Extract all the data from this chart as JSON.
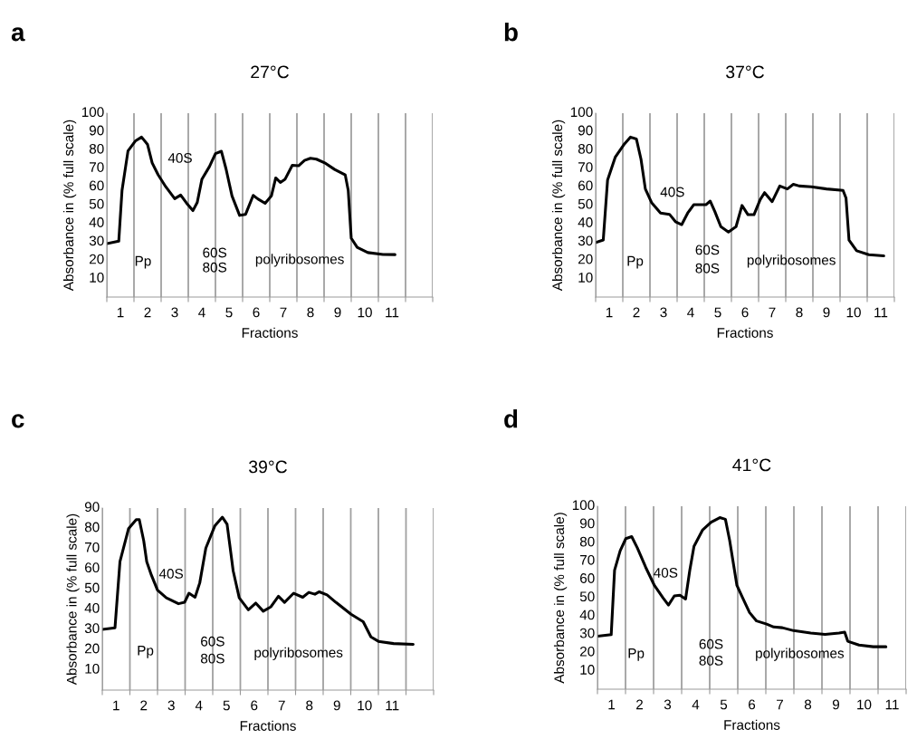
{
  "chart_data": [
    {
      "type": "line",
      "title": "27°C",
      "xlabel": "Fractions",
      "ylabel": "Absorbance in (% full scale)",
      "xlim": [
        0,
        12
      ],
      "ylim": [
        0,
        100
      ],
      "yticks": [
        10,
        20,
        30,
        40,
        50,
        60,
        70,
        80,
        90,
        100
      ],
      "grid": "x",
      "legend": false,
      "marker": "none",
      "line_style": "solid",
      "xticks": [
        {
          "value": 0,
          "label": null
        },
        {
          "value": 1,
          "label": null
        },
        {
          "value": 2,
          "label": null
        },
        {
          "value": 3,
          "label": null
        },
        {
          "value": 4,
          "label": null
        },
        {
          "value": 5,
          "label": null
        },
        {
          "value": 6,
          "label": null
        },
        {
          "value": 7,
          "label": null
        },
        {
          "value": 8,
          "label": null
        },
        {
          "value": 9,
          "label": null
        },
        {
          "value": 10,
          "label": null
        },
        {
          "value": 11,
          "label": null
        },
        {
          "value": 12,
          "label": null
        },
        {
          "value": 0.5,
          "label": "1"
        },
        {
          "value": 1.5,
          "label": "2"
        },
        {
          "value": 2.5,
          "label": "3"
        },
        {
          "value": 3.5,
          "label": "4"
        },
        {
          "value": 4.5,
          "label": "5"
        },
        {
          "value": 5.5,
          "label": "6"
        },
        {
          "value": 6.5,
          "label": "7"
        },
        {
          "value": 7.5,
          "label": "8"
        },
        {
          "value": 8.5,
          "label": "9"
        },
        {
          "value": 9.5,
          "label": "10"
        },
        {
          "value": 10.5,
          "label": "11"
        }
      ],
      "annotations": [
        "a",
        "Pp",
        "40S",
        "60S",
        "80S",
        "polyribosomes"
      ],
      "series": [
        {
          "color": "#000000",
          "x": [
            0,
            0.44,
            0.56,
            0.78,
            1.06,
            1.28,
            1.5,
            1.67,
            1.89,
            2.17,
            2.5,
            2.72,
            2.94,
            3.17,
            3.33,
            3.5,
            3.78,
            4.0,
            4.22,
            4.39,
            4.61,
            4.89,
            5.11,
            5.39,
            5.56,
            5.83,
            6.06,
            6.22,
            6.39,
            6.56,
            6.83,
            7.06,
            7.28,
            7.5,
            7.72,
            8.06,
            8.39,
            8.78,
            8.89,
            9.0,
            9.22,
            9.61,
            10.17,
            10.61
          ],
          "values": [
            29,
            30.4,
            58,
            79.5,
            85,
            87,
            83,
            73,
            66.5,
            60,
            53.5,
            55.5,
            51,
            47,
            51.5,
            64,
            71,
            78,
            79.3,
            69.7,
            55,
            44.4,
            45,
            55.3,
            53.4,
            51,
            55,
            64.8,
            62.3,
            64,
            71.7,
            71.4,
            74.3,
            75.5,
            75,
            72.7,
            69.4,
            66.4,
            58,
            32,
            27,
            24.2,
            23.2,
            23.1
          ]
        }
      ]
    },
    {
      "type": "line",
      "title": "37°C",
      "xlabel": "Fractions",
      "ylabel": "Absorbance in (% full scale)",
      "xlim": [
        0,
        11
      ],
      "ylim": [
        0,
        100
      ],
      "yticks": [
        10,
        20,
        30,
        40,
        50,
        60,
        70,
        80,
        90,
        100
      ],
      "grid": "x",
      "legend": false,
      "marker": "none",
      "line_style": "solid",
      "xticks": [
        {
          "value": 0,
          "label": null
        },
        {
          "value": 1,
          "label": null
        },
        {
          "value": 2,
          "label": null
        },
        {
          "value": 3,
          "label": null
        },
        {
          "value": 4,
          "label": null
        },
        {
          "value": 5,
          "label": null
        },
        {
          "value": 6,
          "label": null
        },
        {
          "value": 7,
          "label": null
        },
        {
          "value": 8,
          "label": null
        },
        {
          "value": 9,
          "label": null
        },
        {
          "value": 10,
          "label": null
        },
        {
          "value": 11,
          "label": null
        },
        {
          "value": 0.5,
          "label": "1"
        },
        {
          "value": 1.5,
          "label": "2"
        },
        {
          "value": 2.5,
          "label": "3"
        },
        {
          "value": 3.5,
          "label": "4"
        },
        {
          "value": 4.5,
          "label": "5"
        },
        {
          "value": 5.5,
          "label": "6"
        },
        {
          "value": 6.5,
          "label": "7"
        },
        {
          "value": 7.5,
          "label": "8"
        },
        {
          "value": 8.5,
          "label": "9"
        },
        {
          "value": 9.5,
          "label": "10"
        },
        {
          "value": 10.5,
          "label": "11"
        }
      ],
      "annotations": [
        "b",
        "Pp",
        "40S",
        "60S",
        "80S",
        "polyribosomes"
      ],
      "series": [
        {
          "color": "#000000",
          "x": [
            0,
            0.28,
            0.44,
            0.72,
            1.06,
            1.28,
            1.5,
            1.67,
            1.83,
            2.06,
            2.39,
            2.72,
            2.94,
            3.17,
            3.39,
            3.61,
            4.06,
            4.22,
            4.39,
            4.61,
            4.89,
            5.17,
            5.39,
            5.61,
            5.83,
            6.06,
            6.22,
            6.5,
            6.78,
            7.06,
            7.28,
            7.5,
            7.94,
            8.5,
            9.11,
            9.22,
            9.33,
            9.61,
            10.06,
            10.61
          ],
          "values": [
            29.6,
            31,
            63.7,
            76,
            83.3,
            87,
            86,
            75,
            58.8,
            51.4,
            45.7,
            45,
            41,
            39.4,
            45.7,
            50.2,
            50.2,
            52.2,
            46.5,
            38.3,
            35.4,
            38.3,
            49.8,
            44.8,
            44.8,
            53,
            56.8,
            51.9,
            60.4,
            58.8,
            61.3,
            60.4,
            60,
            58.8,
            58,
            53.8,
            31,
            25.2,
            23,
            22.4
          ]
        }
      ]
    },
    {
      "type": "line",
      "title": "39°C",
      "xlabel": "Fractions",
      "ylabel": "Absorbance in (% full scale)",
      "xlim": [
        0,
        12
      ],
      "ylim": [
        0,
        90
      ],
      "yticks": [
        10,
        20,
        30,
        40,
        50,
        60,
        70,
        80,
        90
      ],
      "grid": "x",
      "legend": false,
      "marker": "none",
      "line_style": "solid",
      "xticks": [
        {
          "value": 0,
          "label": null
        },
        {
          "value": 1,
          "label": null
        },
        {
          "value": 2,
          "label": null
        },
        {
          "value": 3,
          "label": null
        },
        {
          "value": 4,
          "label": null
        },
        {
          "value": 5,
          "label": null
        },
        {
          "value": 6,
          "label": null
        },
        {
          "value": 7,
          "label": null
        },
        {
          "value": 8,
          "label": null
        },
        {
          "value": 9,
          "label": null
        },
        {
          "value": 10,
          "label": null
        },
        {
          "value": 11,
          "label": null
        },
        {
          "value": 12,
          "label": null
        },
        {
          "value": 0.5,
          "label": "1"
        },
        {
          "value": 1.5,
          "label": "2"
        },
        {
          "value": 2.5,
          "label": "3"
        },
        {
          "value": 3.5,
          "label": "4"
        },
        {
          "value": 4.5,
          "label": "5"
        },
        {
          "value": 5.5,
          "label": "6"
        },
        {
          "value": 6.5,
          "label": "7"
        },
        {
          "value": 7.5,
          "label": "8"
        },
        {
          "value": 8.5,
          "label": "9"
        },
        {
          "value": 9.5,
          "label": "10"
        },
        {
          "value": 10.5,
          "label": "11"
        }
      ],
      "annotations": [
        "c",
        "Pp",
        "40S",
        "60S",
        "80S",
        "polyribosomes"
      ],
      "series": [
        {
          "color": "#000000",
          "x": [
            0,
            0.46,
            0.64,
            0.95,
            1.23,
            1.34,
            1.5,
            1.61,
            1.78,
            2.0,
            2.32,
            2.76,
            2.98,
            3.14,
            3.36,
            3.53,
            3.75,
            4.08,
            4.35,
            4.52,
            4.74,
            4.96,
            5.29,
            5.56,
            5.83,
            6.11,
            6.38,
            6.6,
            6.93,
            7.26,
            7.48,
            7.7,
            7.86,
            8.14,
            8.46,
            9.01,
            9.45,
            9.73,
            10.0,
            10.55,
            11.26
          ],
          "values": [
            30,
            30.8,
            63.5,
            79.8,
            84.3,
            84.3,
            73.9,
            63.5,
            56.8,
            49.4,
            45.6,
            42.7,
            43.4,
            47.9,
            45.9,
            53,
            70.2,
            81.3,
            85.5,
            82,
            59,
            45.6,
            39.7,
            43,
            39,
            41.2,
            46.4,
            43.4,
            47.9,
            45.9,
            48.3,
            47.4,
            48.6,
            47.1,
            43.4,
            37.5,
            33.8,
            26.3,
            24.1,
            23,
            22.6
          ]
        }
      ]
    },
    {
      "type": "line",
      "title": "41°C",
      "xlabel": "Fractions",
      "ylabel": "Absorbance in (% full scale)",
      "xlim": [
        0,
        11
      ],
      "ylim": [
        0,
        100
      ],
      "yticks": [
        10,
        20,
        30,
        40,
        50,
        60,
        70,
        80,
        90,
        100
      ],
      "grid": "x",
      "legend": false,
      "marker": "none",
      "line_style": "solid",
      "xticks": [
        {
          "value": 0,
          "label": null
        },
        {
          "value": 1,
          "label": null
        },
        {
          "value": 2,
          "label": null
        },
        {
          "value": 3,
          "label": null
        },
        {
          "value": 4,
          "label": null
        },
        {
          "value": 5,
          "label": null
        },
        {
          "value": 6,
          "label": null
        },
        {
          "value": 7,
          "label": null
        },
        {
          "value": 8,
          "label": null
        },
        {
          "value": 9,
          "label": null
        },
        {
          "value": 10,
          "label": null
        },
        {
          "value": 11,
          "label": null
        },
        {
          "value": 0.5,
          "label": "1"
        },
        {
          "value": 1.5,
          "label": "2"
        },
        {
          "value": 2.5,
          "label": "3"
        },
        {
          "value": 3.5,
          "label": "4"
        },
        {
          "value": 4.5,
          "label": "5"
        },
        {
          "value": 5.5,
          "label": "6"
        },
        {
          "value": 6.5,
          "label": "7"
        },
        {
          "value": 7.5,
          "label": "8"
        },
        {
          "value": 8.5,
          "label": "9"
        },
        {
          "value": 9.5,
          "label": "10"
        },
        {
          "value": 10.5,
          "label": "11"
        }
      ],
      "annotations": [
        "d",
        "Pp",
        "40S",
        "60S",
        "80S",
        "polyribosomes"
      ],
      "series": [
        {
          "color": "#000000",
          "x": [
            0,
            0.49,
            0.61,
            0.81,
            1.01,
            1.22,
            1.42,
            1.72,
            2.03,
            2.33,
            2.53,
            2.74,
            2.94,
            3.14,
            3.29,
            3.44,
            3.75,
            4.05,
            4.36,
            4.56,
            4.71,
            4.97,
            5.17,
            5.42,
            5.67,
            6.03,
            6.28,
            6.59,
            6.99,
            7.6,
            8.11,
            8.61,
            8.81,
            8.92,
            9.32,
            9.83,
            10.28
          ],
          "values": [
            29,
            29.8,
            65,
            75.7,
            82.3,
            83.4,
            77.3,
            66.6,
            56.7,
            50.1,
            46,
            51,
            51.4,
            49.3,
            65,
            78.1,
            87.1,
            91.3,
            93.8,
            92.9,
            81.4,
            56.7,
            50.1,
            41.9,
            37.3,
            35.6,
            34,
            33.6,
            32,
            30.7,
            30,
            30.7,
            31.2,
            26.2,
            24.1,
            23.2,
            23.2
          ]
        }
      ]
    }
  ]
}
